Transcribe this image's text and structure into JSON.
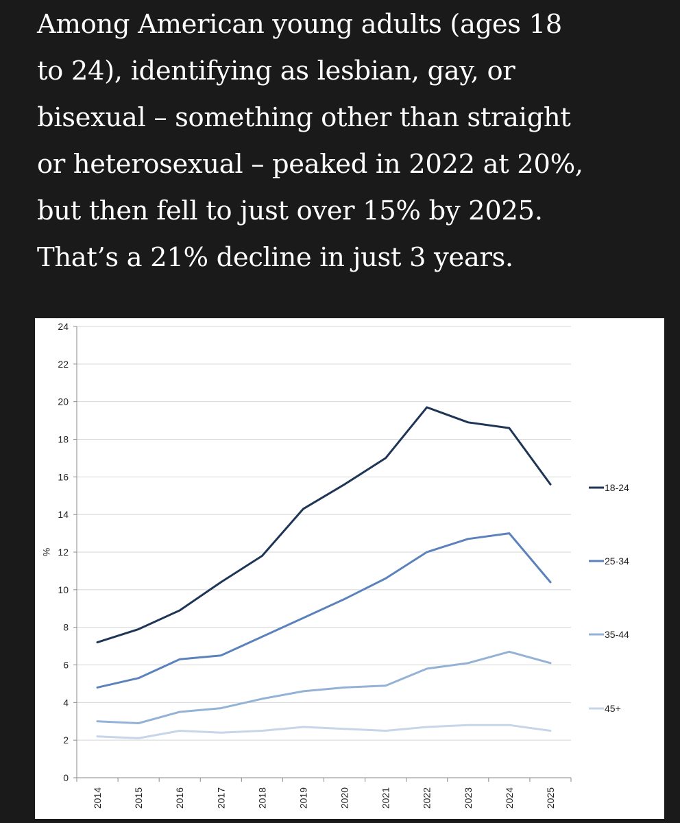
{
  "article": {
    "paragraph_lines": [
      "Among American young adults (ages 18",
      "to 24), identifying as lesbian, gay, or",
      "bisexual – something other than straight",
      "or heterosexual – peaked in 2022 at 20%,",
      "but then fell to just over 15% by 2025.",
      "That’s a 21% decline in just 3 years."
    ]
  },
  "chart_data": {
    "type": "line",
    "title": "",
    "xlabel": "",
    "ylabel": "%",
    "x": [
      2014,
      2015,
      2016,
      2017,
      2018,
      2019,
      2020,
      2021,
      2022,
      2023,
      2024,
      2025
    ],
    "x_tick_labels": [
      "2014",
      "2015",
      "2016",
      "2017",
      "2018",
      "2019",
      "2020",
      "2021",
      "2022",
      "2023",
      "2024",
      "2025"
    ],
    "ylim": [
      0,
      24
    ],
    "y_ticks": [
      0,
      2,
      4,
      6,
      8,
      10,
      12,
      14,
      16,
      18,
      20,
      22,
      24
    ],
    "y_tick_labels": [
      "0",
      "2",
      "4",
      "6",
      "8",
      "10",
      "12",
      "14",
      "16",
      "18",
      "20",
      "22",
      "24"
    ],
    "grid": "horizontal",
    "legend_position": "right",
    "series": [
      {
        "name": "18-24",
        "color": "#1f3556",
        "values": [
          7.2,
          7.9,
          8.9,
          10.4,
          11.8,
          14.3,
          15.6,
          17.0,
          19.7,
          18.9,
          18.6,
          15.6
        ]
      },
      {
        "name": "25-34",
        "color": "#5b82bc",
        "values": [
          4.8,
          5.3,
          6.3,
          6.5,
          7.5,
          8.5,
          9.5,
          10.6,
          12.0,
          12.7,
          13.0,
          10.4
        ]
      },
      {
        "name": "35-44",
        "color": "#94b1d6",
        "values": [
          3.0,
          2.9,
          3.5,
          3.7,
          4.2,
          4.6,
          4.8,
          4.9,
          5.8,
          6.1,
          6.7,
          6.1
        ]
      },
      {
        "name": "45+",
        "color": "#c6d5e9",
        "values": [
          2.2,
          2.1,
          2.5,
          2.4,
          2.5,
          2.7,
          2.6,
          2.5,
          2.7,
          2.8,
          2.8,
          2.5
        ]
      }
    ]
  }
}
